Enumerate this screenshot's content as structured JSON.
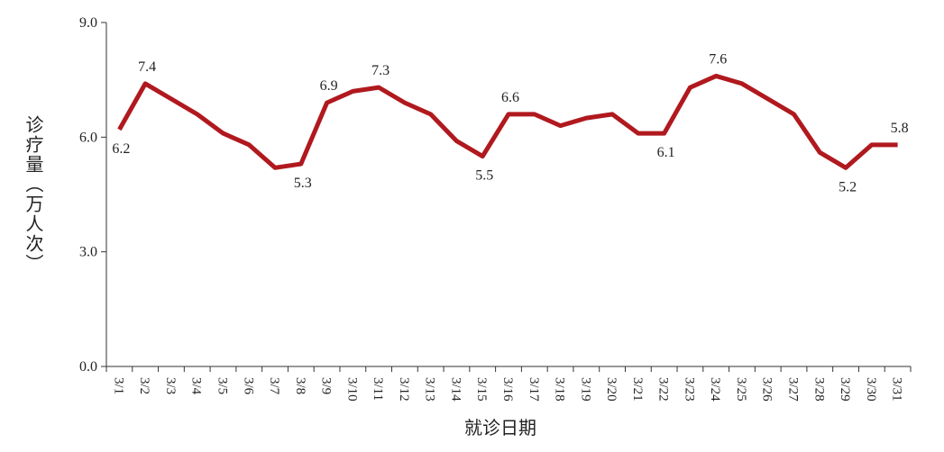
{
  "chart_data": {
    "type": "line",
    "x_label": "就诊日期",
    "y_label": "诊疗量（万人次）",
    "categories": [
      "3/1",
      "3/2",
      "3/3",
      "3/4",
      "3/5",
      "3/6",
      "3/7",
      "3/8",
      "3/9",
      "3/10",
      "3/11",
      "3/12",
      "3/13",
      "3/14",
      "3/15",
      "3/16",
      "3/17",
      "3/18",
      "3/19",
      "3/20",
      "3/21",
      "3/22",
      "3/23",
      "3/24",
      "3/25",
      "3/26",
      "3/27",
      "3/28",
      "3/29",
      "3/30",
      "3/31"
    ],
    "series": [
      {
        "name": "诊疗量",
        "color": "#b0191e",
        "values": [
          6.2,
          7.4,
          7.0,
          6.6,
          6.1,
          5.8,
          5.2,
          5.3,
          6.9,
          7.2,
          7.3,
          6.9,
          6.6,
          5.9,
          5.5,
          6.6,
          6.6,
          6.3,
          6.5,
          6.6,
          6.1,
          6.1,
          7.3,
          7.6,
          7.4,
          7.0,
          6.6,
          5.6,
          5.2,
          5.8,
          5.8
        ],
        "value_labels": [
          "6.2",
          "7.4",
          null,
          null,
          null,
          null,
          null,
          "5.3",
          "6.9",
          null,
          "7.3",
          null,
          null,
          null,
          "5.5",
          "6.6",
          null,
          null,
          null,
          null,
          null,
          "6.1",
          null,
          "7.6",
          null,
          null,
          null,
          null,
          "5.2",
          null,
          "5.8"
        ]
      }
    ],
    "ylim": [
      0,
      9
    ],
    "yticks": [
      {
        "value": 0,
        "label": "0.0"
      },
      {
        "value": 3,
        "label": "3.0"
      },
      {
        "value": 6,
        "label": "6.0"
      },
      {
        "value": 9,
        "label": "9.0"
      }
    ],
    "grid": false
  }
}
